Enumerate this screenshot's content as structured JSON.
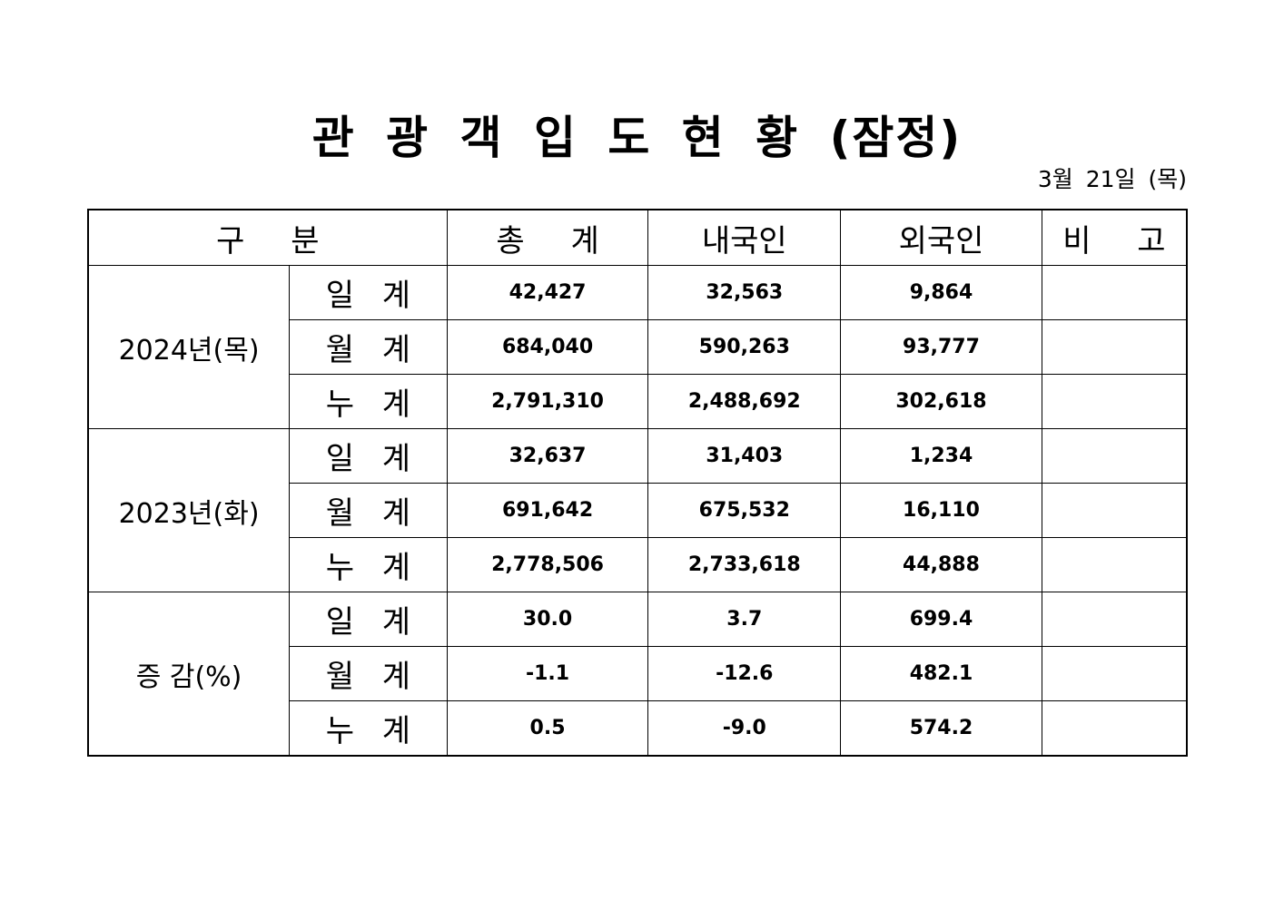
{
  "header": {
    "title": "관 광 객 입 도 현 황 (잠정)",
    "date": "3월 21일 (목)"
  },
  "table": {
    "columns": [
      "구 분",
      "총 계",
      "내국인",
      "외국인",
      "비 고"
    ],
    "groups": [
      {
        "label": "2024년(목)",
        "rows": [
          {
            "label": "일 계",
            "values": [
              "42,427",
              "32,563",
              "9,864"
            ]
          },
          {
            "label": "월 계",
            "values": [
              "684,040",
              "590,263",
              "93,777"
            ]
          },
          {
            "label": "누 계",
            "values": [
              "2,791,310",
              "2,488,692",
              "302,618"
            ]
          }
        ]
      },
      {
        "label": "2023년(화)",
        "rows": [
          {
            "label": "일 계",
            "values": [
              "32,637",
              "31,403",
              "1,234"
            ]
          },
          {
            "label": "월 계",
            "values": [
              "691,642",
              "675,532",
              "16,110"
            ]
          },
          {
            "label": "누 계",
            "values": [
              "2,778,506",
              "2,733,618",
              "44,888"
            ]
          }
        ]
      },
      {
        "label": "증 감(%)",
        "rows": [
          {
            "label": "일 계",
            "values": [
              "30.0",
              "3.7",
              "699.4"
            ]
          },
          {
            "label": "월 계",
            "values": [
              "-1.1",
              "-12.6",
              "482.1"
            ]
          },
          {
            "label": "누 계",
            "values": [
              "0.5",
              "-9.0",
              "574.2"
            ]
          }
        ]
      }
    ]
  }
}
